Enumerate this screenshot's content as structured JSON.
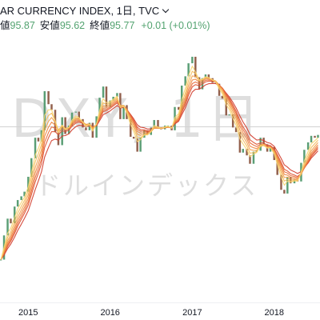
{
  "header": {
    "ohlc": [
      {
        "label": "値",
        "value": "95.87"
      },
      {
        "label": "安値",
        "value": "95.62"
      },
      {
        "label": "終値",
        "value": "95.77"
      }
    ],
    "change": "+0.01 (+0.01%)"
  },
  "watermark": {
    "symbol": "DXY, 1日",
    "description": "ドルインデックス"
  },
  "icons": {
    "legend_toggle": "chevron-down-icon"
  },
  "colors": {
    "text": "#131722",
    "value_green": "#53a370",
    "watermark": "#dedede",
    "candle_up": "#5a9e75",
    "candle_down": "#92604d",
    "price_line": "#d2d2d2",
    "ribbon": [
      "#f9d56e",
      "#f5bc5a",
      "#f2a04b",
      "#ee8540",
      "#e76a38",
      "#de5232",
      "#d13c2c"
    ]
  },
  "chart_data": {
    "type": "line",
    "title": "AR CURRENCY INDEX, 1日, TVC",
    "xlabel": "",
    "ylabel": "",
    "x_ticks": [
      "2015",
      "2016",
      "2017",
      "2018"
    ],
    "xlim": [
      "2014-08-28",
      "2018-07-24"
    ],
    "ylim": [
      76.9,
      109.4
    ],
    "grid": false,
    "last_close": 95.77,
    "x": [
      "2014-09-01",
      "2014-09-15",
      "2014-10-01",
      "2014-10-15",
      "2014-11-01",
      "2014-11-15",
      "2014-12-01",
      "2014-12-15",
      "2015-01-01",
      "2015-01-15",
      "2015-02-01",
      "2015-02-15",
      "2015-03-01",
      "2015-03-15",
      "2015-04-01",
      "2015-04-15",
      "2015-05-01",
      "2015-05-15",
      "2015-06-01",
      "2015-06-15",
      "2015-07-01",
      "2015-07-15",
      "2015-08-01",
      "2015-08-15",
      "2015-09-01",
      "2015-09-15",
      "2015-10-01",
      "2015-10-15",
      "2015-11-01",
      "2015-11-15",
      "2015-12-01",
      "2015-12-15",
      "2016-01-01",
      "2016-01-15",
      "2016-02-01",
      "2016-02-15",
      "2016-03-01",
      "2016-03-15",
      "2016-04-01",
      "2016-04-15",
      "2016-05-01",
      "2016-05-15",
      "2016-06-01",
      "2016-06-15",
      "2016-07-01",
      "2016-07-15",
      "2016-08-01",
      "2016-08-15",
      "2016-09-01",
      "2016-09-15",
      "2016-10-01",
      "2016-10-15",
      "2016-11-01",
      "2016-11-15",
      "2016-12-01",
      "2016-12-15",
      "2017-01-01",
      "2017-01-15",
      "2017-02-01",
      "2017-02-15",
      "2017-03-01",
      "2017-03-15",
      "2017-04-01",
      "2017-04-15",
      "2017-05-01",
      "2017-05-15",
      "2017-06-01",
      "2017-06-15",
      "2017-07-01",
      "2017-07-15",
      "2017-08-01",
      "2017-08-15",
      "2017-09-01",
      "2017-09-15",
      "2017-10-01",
      "2017-10-15",
      "2017-11-01",
      "2017-11-15",
      "2017-12-01",
      "2017-12-15",
      "2018-01-01",
      "2018-01-15",
      "2018-02-01",
      "2018-02-15",
      "2018-03-01",
      "2018-03-15",
      "2018-04-01",
      "2018-04-15",
      "2018-05-01",
      "2018-05-15",
      "2018-06-01",
      "2018-06-15",
      "2018-07-01",
      "2018-07-15"
    ],
    "values": [
      81.5,
      84.1,
      85.9,
      85.4,
      87.2,
      87.9,
      88.3,
      88.8,
      90.4,
      92.4,
      94.6,
      94.2,
      95.4,
      99.6,
      98.2,
      97.6,
      95.2,
      93.8,
      96.8,
      95.0,
      95.9,
      97.3,
      97.4,
      96.6,
      95.7,
      95.4,
      96.2,
      94.6,
      96.9,
      98.9,
      100.1,
      97.9,
      98.6,
      99.0,
      99.4,
      96.6,
      98.1,
      96.6,
      94.7,
      94.5,
      93.1,
      94.6,
      95.4,
      94.9,
      95.7,
      96.5,
      95.6,
      95.5,
      95.9,
      95.9,
      95.4,
      97.9,
      97.6,
      100.2,
      101.2,
      102.6,
      103.3,
      101.1,
      99.8,
      101.0,
      101.4,
      101.0,
      100.5,
      100.4,
      99.1,
      98.8,
      97.0,
      97.1,
      95.7,
      95.2,
      93.0,
      93.4,
      92.7,
      91.8,
      93.1,
      93.2,
      94.6,
      93.9,
      93.1,
      93.6,
      92.2,
      90.6,
      89.0,
      88.6,
      90.4,
      89.7,
      90.1,
      89.9,
      91.9,
      93.3,
      94.1,
      94.8,
      94.6,
      94.9
    ]
  }
}
